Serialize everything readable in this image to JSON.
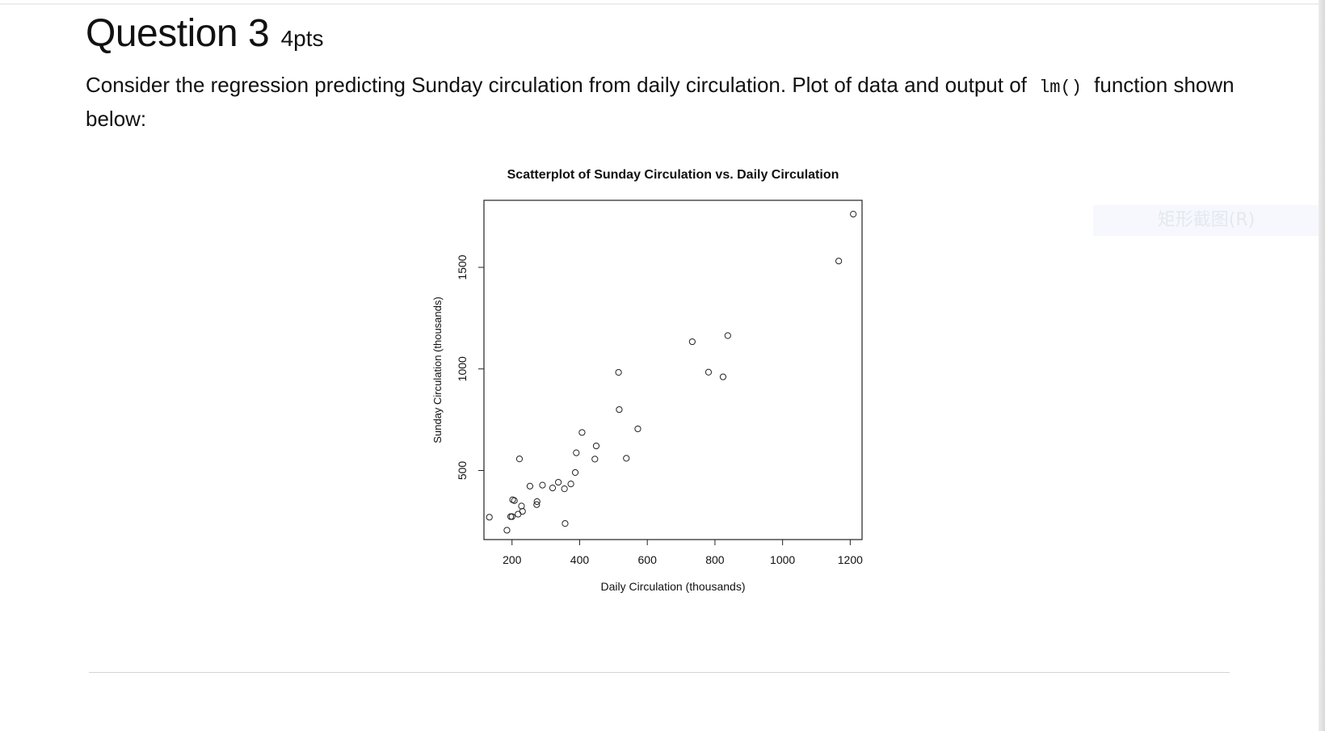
{
  "question": {
    "title": "Question 3",
    "points": "4pts",
    "text_before_code": "Consider the regression predicting Sunday circulation from daily circulation. Plot of data and output of",
    "code": "lm()",
    "text_after_code": "function shown below:"
  },
  "overlay": {
    "screenshot_hint": "矩形截图(R)"
  },
  "chart_data": {
    "type": "scatter",
    "title": "Scatterplot of Sunday Circulation vs. Daily Circulation",
    "xlabel": "Daily Circulation (thousands)",
    "ylabel": "Sunday Circulation (thousands)",
    "xlim": [
      117,
      1235
    ],
    "ylim": [
      160,
      1830
    ],
    "xticks": [
      200,
      400,
      600,
      800,
      1000,
      1200
    ],
    "yticks": [
      500,
      1000,
      1500
    ],
    "grid": false,
    "points": [
      {
        "x": 133,
        "y": 270
      },
      {
        "x": 185,
        "y": 206
      },
      {
        "x": 196,
        "y": 273
      },
      {
        "x": 200,
        "y": 273
      },
      {
        "x": 202,
        "y": 356
      },
      {
        "x": 207,
        "y": 352
      },
      {
        "x": 218,
        "y": 285
      },
      {
        "x": 222,
        "y": 557
      },
      {
        "x": 228,
        "y": 325
      },
      {
        "x": 231,
        "y": 299
      },
      {
        "x": 253,
        "y": 423
      },
      {
        "x": 273,
        "y": 332
      },
      {
        "x": 274,
        "y": 347
      },
      {
        "x": 290,
        "y": 428
      },
      {
        "x": 320,
        "y": 414
      },
      {
        "x": 337,
        "y": 442
      },
      {
        "x": 355,
        "y": 410
      },
      {
        "x": 357,
        "y": 239
      },
      {
        "x": 374,
        "y": 434
      },
      {
        "x": 387,
        "y": 490
      },
      {
        "x": 390,
        "y": 587
      },
      {
        "x": 407,
        "y": 687
      },
      {
        "x": 445,
        "y": 556
      },
      {
        "x": 449,
        "y": 621
      },
      {
        "x": 515,
        "y": 983
      },
      {
        "x": 517,
        "y": 800
      },
      {
        "x": 538,
        "y": 560
      },
      {
        "x": 572,
        "y": 705
      },
      {
        "x": 733,
        "y": 1134
      },
      {
        "x": 781,
        "y": 984
      },
      {
        "x": 824,
        "y": 961
      },
      {
        "x": 838,
        "y": 1164
      },
      {
        "x": 1166,
        "y": 1531
      },
      {
        "x": 1209,
        "y": 1762
      }
    ]
  }
}
